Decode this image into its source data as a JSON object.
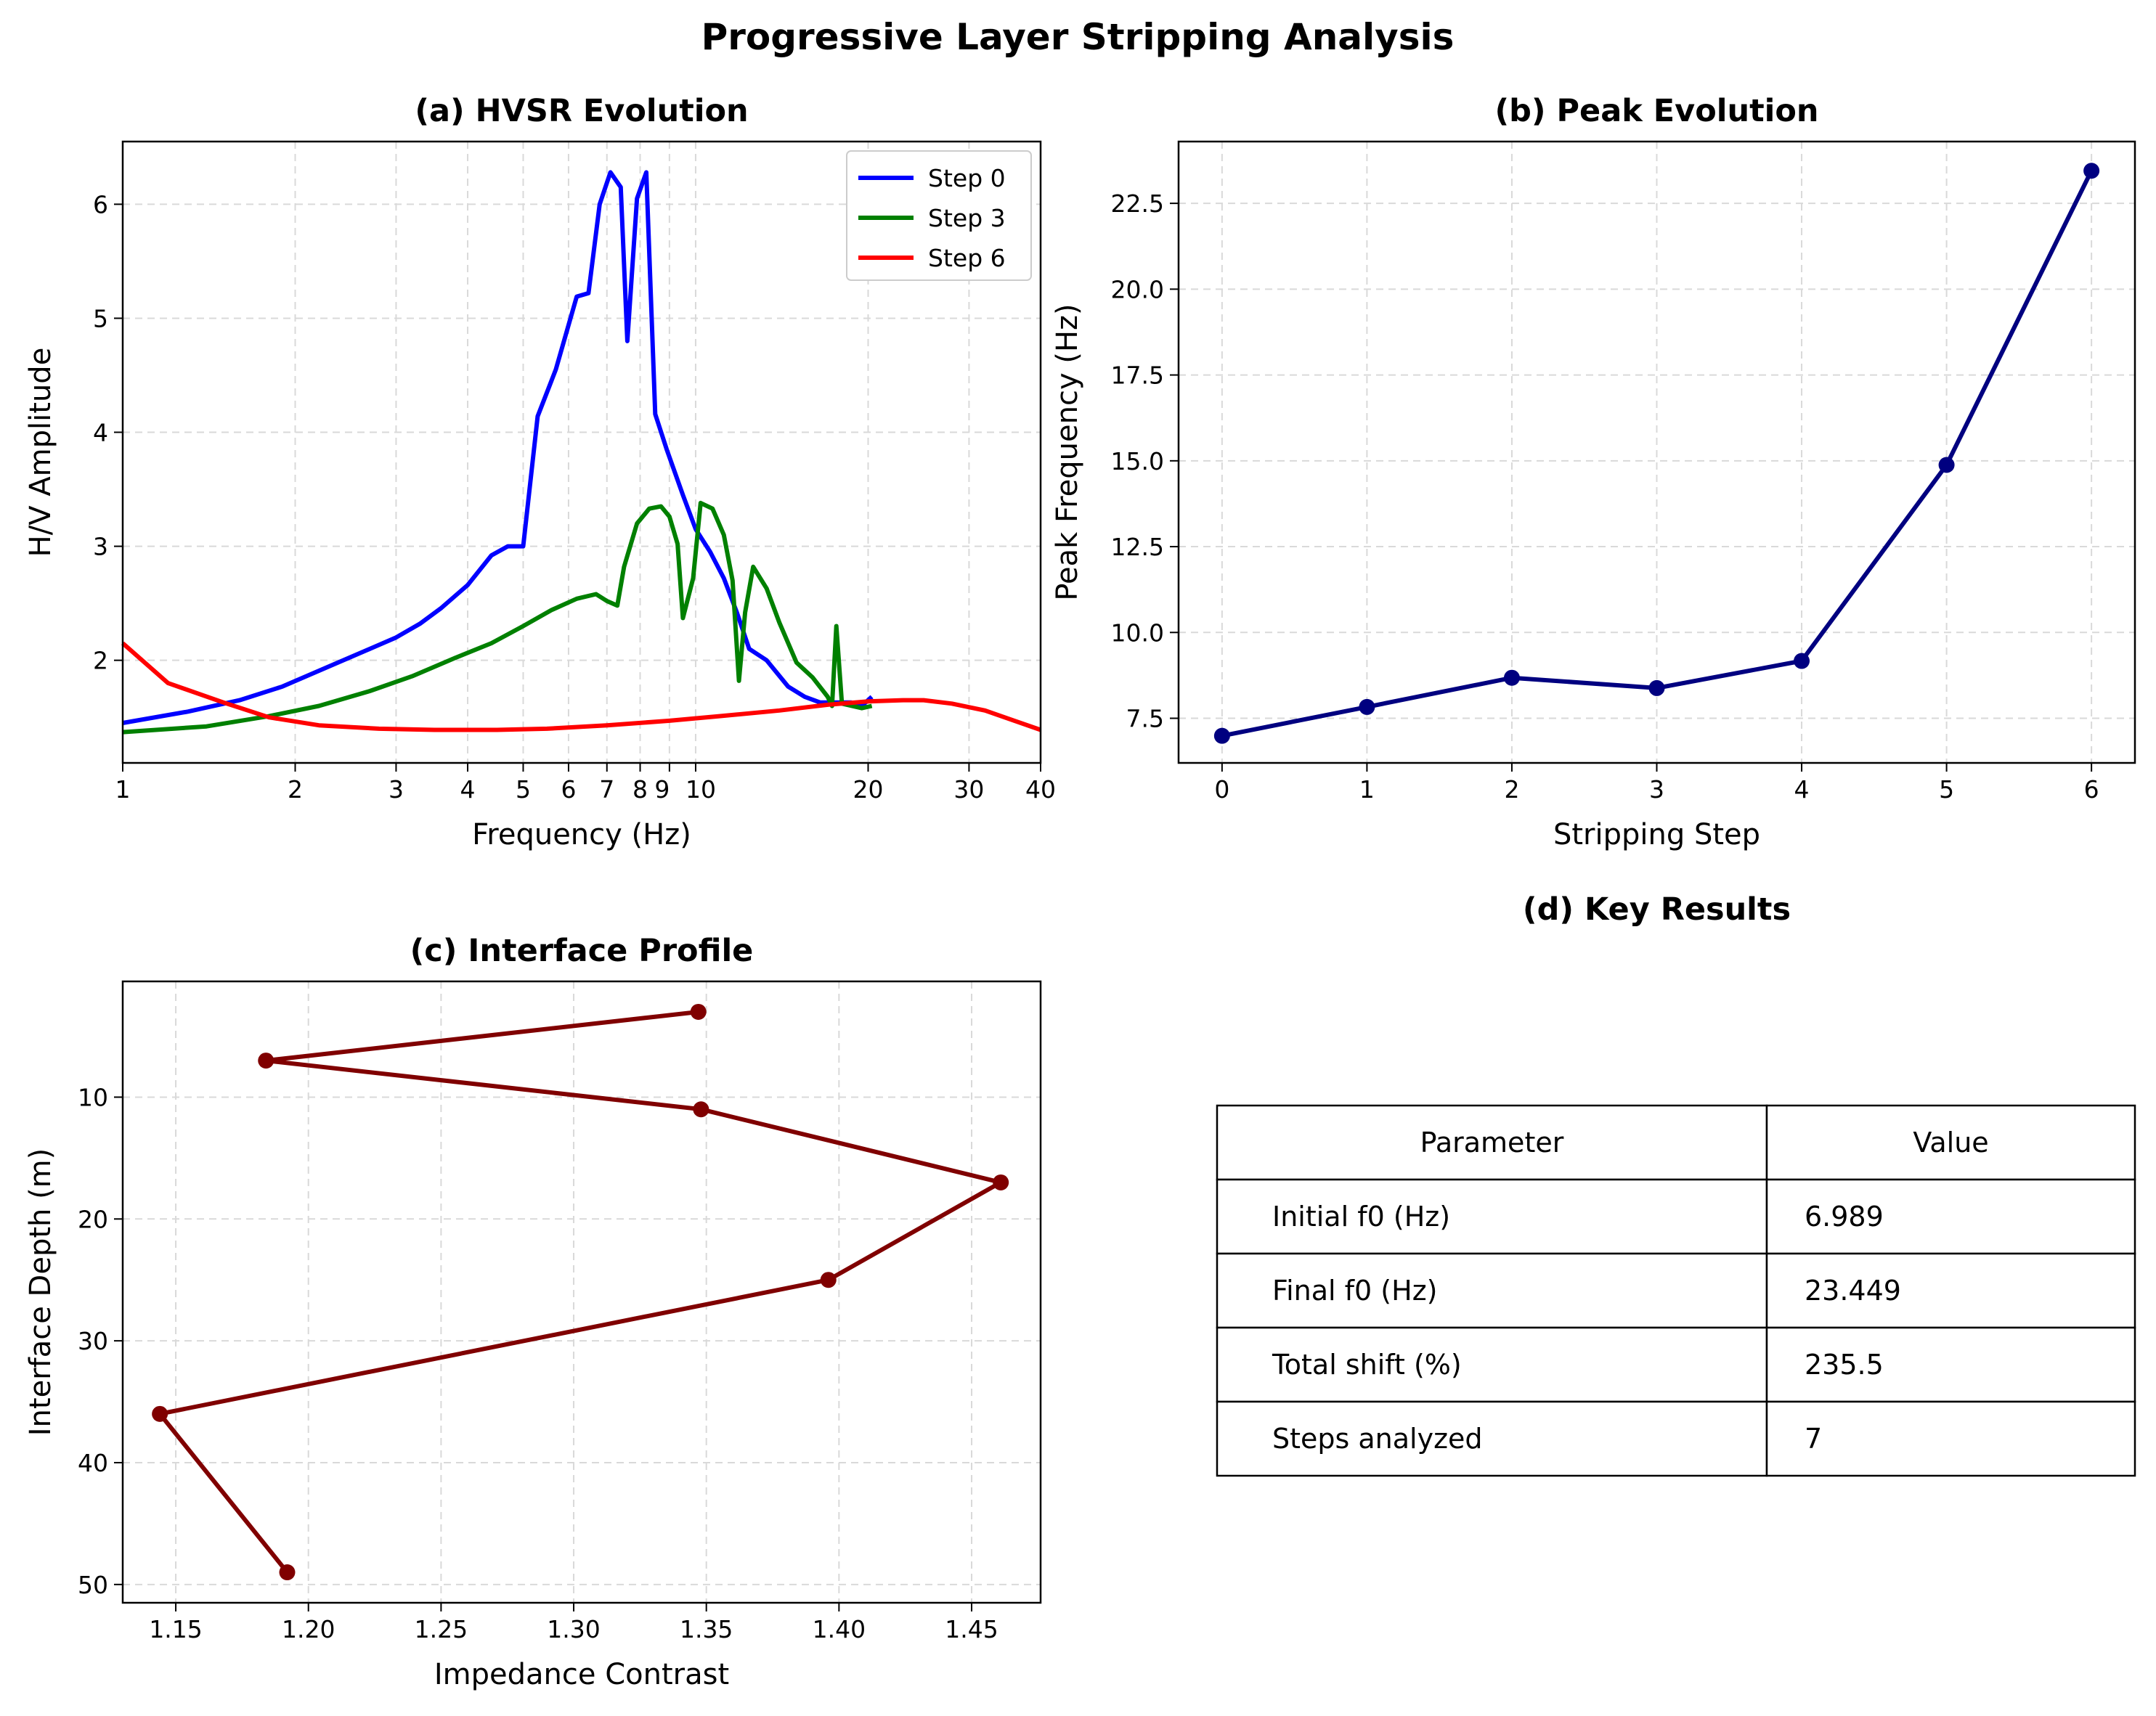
{
  "figure": {
    "title": "Progressive Layer Stripping Analysis"
  },
  "chart_data": [
    {
      "id": "a",
      "type": "line",
      "title": "(a) HVSR Evolution",
      "xlabel": "Frequency (Hz)",
      "ylabel": "H/V Amplitude",
      "xscale": "log",
      "xlim": [
        1,
        40
      ],
      "ylim": [
        1.1,
        6.55
      ],
      "xticks": [
        1,
        2,
        3,
        4,
        5,
        6,
        7,
        8,
        9,
        10,
        20,
        30,
        40
      ],
      "xtick_labels": [
        "1",
        "2",
        "3",
        "4",
        "5",
        "6",
        "7",
        "8",
        "9",
        "10",
        "20",
        "30",
        "40"
      ],
      "yticks": [
        2,
        3,
        4,
        5,
        6
      ],
      "ytick_labels": [
        "2",
        "3",
        "4",
        "5",
        "6"
      ],
      "grid": true,
      "legend": "top-right",
      "series": [
        {
          "name": "Step 0",
          "color": "#0000ff",
          "x": [
            1.0,
            1.3,
            1.6,
            1.9,
            2.3,
            2.7,
            3.0,
            3.3,
            3.6,
            4.0,
            4.4,
            4.7,
            5.0,
            5.3,
            5.7,
            6.2,
            6.5,
            6.8,
            7.1,
            7.4,
            7.6,
            7.9,
            8.2,
            8.5,
            8.9,
            9.5,
            10.0,
            10.6,
            11.2,
            11.8,
            12.4,
            13.3,
            14.5,
            15.5,
            16.5,
            17.5,
            18.7,
            19.5,
            20.3
          ],
          "y": [
            1.45,
            1.55,
            1.65,
            1.77,
            1.95,
            2.1,
            2.2,
            2.32,
            2.46,
            2.66,
            2.92,
            3.0,
            3.0,
            4.14,
            4.55,
            5.19,
            5.22,
            6.0,
            6.28,
            6.15,
            4.8,
            6.05,
            6.28,
            4.16,
            3.85,
            3.45,
            3.15,
            2.95,
            2.72,
            2.42,
            2.1,
            2.0,
            1.77,
            1.68,
            1.63,
            1.63,
            1.63,
            1.6,
            1.68
          ]
        },
        {
          "name": "Step 3",
          "color": "#008000",
          "x": [
            1.0,
            1.4,
            1.8,
            2.2,
            2.7,
            3.2,
            3.8,
            4.4,
            5.0,
            5.6,
            6.2,
            6.7,
            7.0,
            7.3,
            7.5,
            7.9,
            8.3,
            8.7,
            9.0,
            9.3,
            9.5,
            9.9,
            10.2,
            10.7,
            11.2,
            11.6,
            11.9,
            12.2,
            12.6,
            13.3,
            14.0,
            15.0,
            16.0,
            17.0,
            17.3,
            17.6,
            18.0,
            19.5,
            20.3
          ],
          "y": [
            1.37,
            1.42,
            1.51,
            1.6,
            1.73,
            1.86,
            2.02,
            2.15,
            2.3,
            2.44,
            2.54,
            2.58,
            2.52,
            2.48,
            2.82,
            3.2,
            3.33,
            3.35,
            3.26,
            3.02,
            2.37,
            2.72,
            3.38,
            3.33,
            3.1,
            2.7,
            1.82,
            2.42,
            2.82,
            2.63,
            2.33,
            1.98,
            1.85,
            1.68,
            1.6,
            2.3,
            1.62,
            1.58,
            1.6
          ]
        },
        {
          "name": "Step 6",
          "color": "#ff0000",
          "x": [
            1.0,
            1.2,
            1.5,
            1.8,
            2.2,
            2.8,
            3.5,
            4.5,
            5.5,
            7.0,
            9.0,
            11.0,
            14.0,
            17.0,
            20.0,
            23.0,
            25.0,
            28.0,
            32.0,
            36.0,
            40.0
          ],
          "y": [
            2.15,
            1.8,
            1.63,
            1.5,
            1.43,
            1.4,
            1.39,
            1.39,
            1.4,
            1.43,
            1.47,
            1.51,
            1.56,
            1.61,
            1.64,
            1.65,
            1.65,
            1.62,
            1.56,
            1.47,
            1.39
          ]
        }
      ]
    },
    {
      "id": "b",
      "type": "line",
      "title": "(b) Peak Evolution",
      "xlabel": "Stripping Step",
      "ylabel": "Peak Frequency (Hz)",
      "xlim": [
        -0.3,
        6.3
      ],
      "ylim": [
        6.2,
        24.3
      ],
      "xticks": [
        0,
        1,
        2,
        3,
        4,
        5,
        6
      ],
      "xtick_labels": [
        "0",
        "1",
        "2",
        "3",
        "4",
        "5",
        "6"
      ],
      "yticks": [
        7.5,
        10.0,
        12.5,
        15.0,
        17.5,
        20.0,
        22.5
      ],
      "ytick_labels": [
        "7.5",
        "10.0",
        "12.5",
        "15.0",
        "17.5",
        "20.0",
        "22.5"
      ],
      "grid": true,
      "series": [
        {
          "color": "#000080",
          "x": [
            0,
            1,
            2,
            3,
            4,
            5,
            6
          ],
          "y": [
            6.989,
            7.83,
            8.68,
            8.38,
            9.17,
            14.88,
            23.449
          ]
        }
      ]
    },
    {
      "id": "c",
      "type": "line",
      "title": "(c) Interface Profile",
      "xlabel": "Impedance Contrast",
      "ylabel": "Interface Depth (m)",
      "xlim": [
        1.13,
        1.476
      ],
      "ylim": [
        51.5,
        0.5
      ],
      "xticks": [
        1.15,
        1.2,
        1.25,
        1.3,
        1.35,
        1.4,
        1.45
      ],
      "xtick_labels": [
        "1.15",
        "1.20",
        "1.25",
        "1.30",
        "1.35",
        "1.40",
        "1.45"
      ],
      "yticks": [
        10,
        20,
        30,
        40,
        50
      ],
      "ytick_labels": [
        "10",
        "20",
        "30",
        "40",
        "50"
      ],
      "grid": true,
      "series": [
        {
          "color": "#800000",
          "x": [
            1.347,
            1.184,
            1.348,
            1.461,
            1.396,
            1.144,
            1.192
          ],
          "y": [
            3,
            7,
            11,
            17,
            25,
            36,
            49
          ]
        }
      ]
    },
    {
      "id": "d",
      "type": "table",
      "title": "(d) Key Results",
      "columns": [
        "Parameter",
        "Value"
      ],
      "rows": [
        [
          "Initial f0 (Hz)",
          "6.989"
        ],
        [
          "Final f0 (Hz)",
          "23.449"
        ],
        [
          "Total shift (%)",
          "235.5"
        ],
        [
          "Steps analyzed",
          "7"
        ]
      ]
    }
  ]
}
